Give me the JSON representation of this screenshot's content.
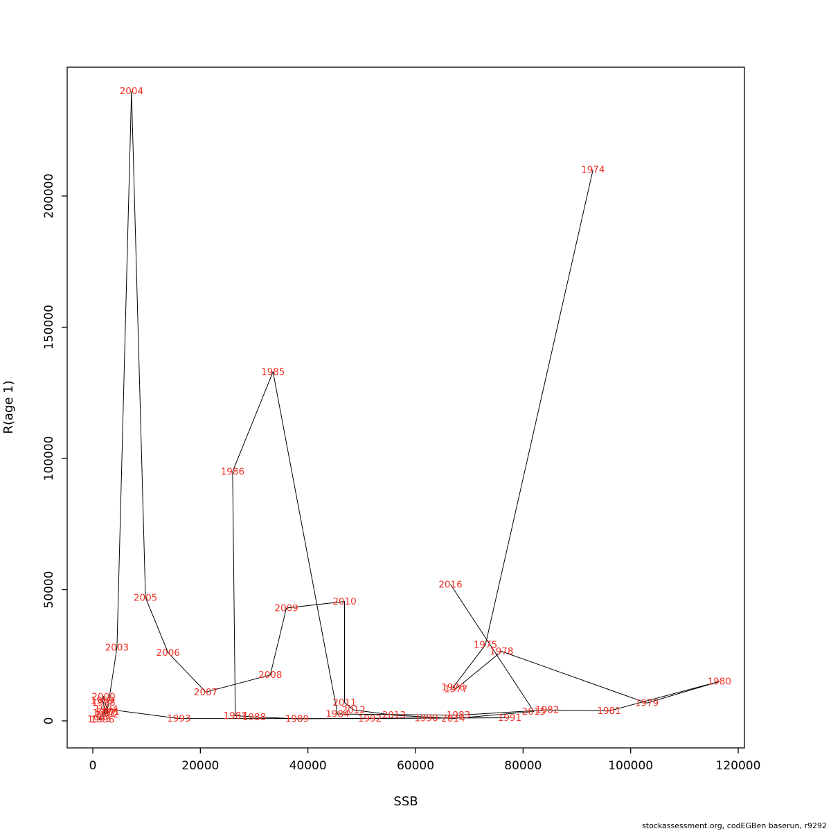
{
  "chart_data": {
    "type": "scatter",
    "title": "",
    "xlabel": "SSB",
    "ylabel": "R(age 1)",
    "xlim": [
      0,
      120000
    ],
    "ylim": [
      0,
      245000
    ],
    "x_ticks": [
      0,
      20000,
      40000,
      60000,
      80000,
      100000,
      120000
    ],
    "y_ticks": [
      0,
      50000,
      100000,
      150000,
      200000
    ],
    "grid": false,
    "legend": "none",
    "connected": true,
    "label_color": "#f03125",
    "line_color": "#000000",
    "axis_color": "#000000",
    "points": [
      {
        "year": "1974",
        "ssb": 93000,
        "r": 210000
      },
      {
        "year": "1975",
        "ssb": 73000,
        "r": 29000
      },
      {
        "year": "1976",
        "ssb": 67000,
        "r": 12800
      },
      {
        "year": "1977",
        "ssb": 67500,
        "r": 12200
      },
      {
        "year": "1978",
        "ssb": 76000,
        "r": 26500
      },
      {
        "year": "1979",
        "ssb": 103000,
        "r": 6800
      },
      {
        "year": "1980",
        "ssb": 116500,
        "r": 15000
      },
      {
        "year": "1981",
        "ssb": 96000,
        "r": 3800
      },
      {
        "year": "1982",
        "ssb": 84500,
        "r": 4200
      },
      {
        "year": "1983",
        "ssb": 68000,
        "r": 2200
      },
      {
        "year": "1984",
        "ssb": 45500,
        "r": 2600
      },
      {
        "year": "1985",
        "ssb": 33500,
        "r": 133000
      },
      {
        "year": "1986",
        "ssb": 26000,
        "r": 95000
      },
      {
        "year": "1987",
        "ssb": 26500,
        "r": 2000
      },
      {
        "year": "1988",
        "ssb": 30000,
        "r": 1500
      },
      {
        "year": "1989",
        "ssb": 38000,
        "r": 800
      },
      {
        "year": "1990",
        "ssb": 62000,
        "r": 1100
      },
      {
        "year": "1991",
        "ssb": 77500,
        "r": 1200
      },
      {
        "year": "1992",
        "ssb": 51500,
        "r": 900
      },
      {
        "year": "1993",
        "ssb": 16000,
        "r": 900
      },
      {
        "year": "1994",
        "ssb": 2500,
        "r": 4500
      },
      {
        "year": "1995",
        "ssb": 1200,
        "r": 700
      },
      {
        "year": "1996",
        "ssb": 1800,
        "r": 500
      },
      {
        "year": "1997",
        "ssb": 2200,
        "r": 3000
      },
      {
        "year": "1998",
        "ssb": 2000,
        "r": 7000
      },
      {
        "year": "1999",
        "ssb": 1800,
        "r": 7800
      },
      {
        "year": "2000",
        "ssb": 2000,
        "r": 9200
      },
      {
        "year": "2001",
        "ssb": 2800,
        "r": 3500
      },
      {
        "year": "2002",
        "ssb": 2600,
        "r": 2500
      },
      {
        "year": "2003",
        "ssb": 4500,
        "r": 28000
      },
      {
        "year": "2004",
        "ssb": 7200,
        "r": 240000
      },
      {
        "year": "2005",
        "ssb": 9800,
        "r": 47000
      },
      {
        "year": "2006",
        "ssb": 14000,
        "r": 26000
      },
      {
        "year": "2007",
        "ssb": 21000,
        "r": 11000
      },
      {
        "year": "2008",
        "ssb": 33000,
        "r": 17500
      },
      {
        "year": "2009",
        "ssb": 36000,
        "r": 43000
      },
      {
        "year": "2010",
        "ssb": 46800,
        "r": 45500
      },
      {
        "year": "2011",
        "ssb": 46800,
        "r": 7000
      },
      {
        "year": "2012",
        "ssb": 48500,
        "r": 4200
      },
      {
        "year": "2013",
        "ssb": 56000,
        "r": 2200
      },
      {
        "year": "2014",
        "ssb": 67000,
        "r": 900
      },
      {
        "year": "2015",
        "ssb": 82000,
        "r": 3600
      },
      {
        "year": "2016",
        "ssb": 66500,
        "r": 52000
      }
    ]
  },
  "footer": {
    "credit": "stockassessment.org, codEGBen  baserun, r9292"
  }
}
